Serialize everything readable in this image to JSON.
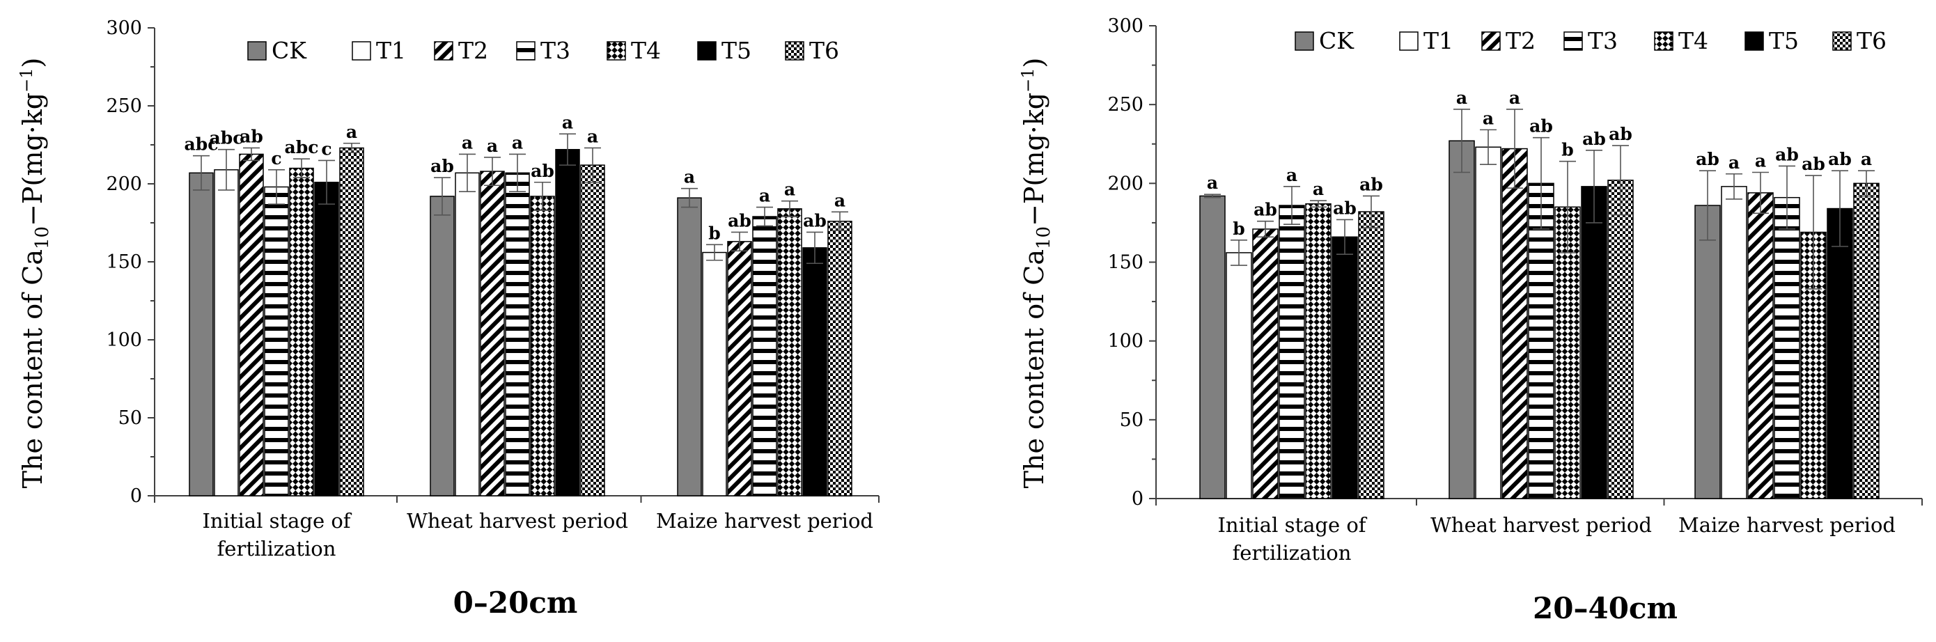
{
  "chart_data": [
    {
      "type": "bar",
      "title": "0–20cm",
      "ylabel": "The content of Ca10−P(mg·kg−1)",
      "ylabel_parts": {
        "prefix": "The content of Ca",
        "sub": "10",
        "mid": "−P(mg·kg",
        "sup": "−1",
        "suffix": ")"
      },
      "ylim": [
        0,
        300
      ],
      "yticks": [
        "0",
        "50",
        "100",
        "150",
        "200",
        "250",
        "300"
      ],
      "categories": [
        [
          "Initial stage of",
          "fertilization"
        ],
        [
          "Wheat harvest period"
        ],
        [
          "Maize harvest period"
        ]
      ],
      "legend": [
        "CK",
        "T1",
        "T2",
        "T3",
        "T4",
        "T5",
        "T6"
      ],
      "series": [
        {
          "name": "CK",
          "values": [
            207,
            192,
            191
          ],
          "errors": [
            11,
            12,
            6
          ],
          "sig": [
            "abc",
            "ab",
            "a"
          ]
        },
        {
          "name": "T1",
          "values": [
            209,
            207,
            156
          ],
          "errors": [
            13,
            12,
            5
          ],
          "sig": [
            "abc",
            "a",
            "b"
          ]
        },
        {
          "name": "T2",
          "values": [
            219,
            208,
            163
          ],
          "errors": [
            4,
            9,
            6
          ],
          "sig": [
            "ab",
            "a",
            "ab"
          ]
        },
        {
          "name": "T3",
          "values": [
            198,
            207,
            179
          ],
          "errors": [
            11,
            12,
            6
          ],
          "sig": [
            "c",
            "a",
            "a"
          ]
        },
        {
          "name": "T4",
          "values": [
            210,
            192,
            184
          ],
          "errors": [
            6,
            9,
            5
          ],
          "sig": [
            "abc",
            "ab",
            "a"
          ]
        },
        {
          "name": "T5",
          "values": [
            201,
            222,
            159
          ],
          "errors": [
            14,
            10,
            10
          ],
          "sig": [
            "c",
            "a",
            "ab"
          ]
        },
        {
          "name": "T6",
          "values": [
            223,
            212,
            176
          ],
          "errors": [
            3,
            11,
            6
          ],
          "sig": [
            "a",
            "a",
            "a"
          ]
        }
      ]
    },
    {
      "type": "bar",
      "title": "20–40cm",
      "ylabel": "The content of Ca10−P(mg·kg−1)",
      "ylabel_parts": {
        "prefix": "The content of Ca",
        "sub": "10",
        "mid": "−P(mg·kg",
        "sup": "−1",
        "suffix": ")"
      },
      "ylim": [
        0,
        300
      ],
      "yticks": [
        "0",
        "50",
        "100",
        "150",
        "200",
        "250",
        "300"
      ],
      "categories": [
        [
          "Initial stage of",
          "fertilization"
        ],
        [
          "Wheat harvest period"
        ],
        [
          "Maize harvest period"
        ]
      ],
      "legend": [
        "CK",
        "T1",
        "T2",
        "T3",
        "T4",
        "T5",
        "T6"
      ],
      "series": [
        {
          "name": "CK",
          "values": [
            192,
            227,
            186
          ],
          "errors": [
            1,
            20,
            22
          ],
          "sig": [
            "a",
            "a",
            "ab"
          ]
        },
        {
          "name": "T1",
          "values": [
            156,
            223,
            198
          ],
          "errors": [
            8,
            11,
            8
          ],
          "sig": [
            "b",
            "a",
            "a"
          ]
        },
        {
          "name": "T2",
          "values": [
            171,
            222,
            194
          ],
          "errors": [
            5,
            25,
            13
          ],
          "sig": [
            "ab",
            "a",
            "a"
          ]
        },
        {
          "name": "T3",
          "values": [
            186,
            200,
            191
          ],
          "errors": [
            12,
            29,
            20
          ],
          "sig": [
            "a",
            "ab",
            "ab"
          ]
        },
        {
          "name": "T4",
          "values": [
            187,
            185,
            169
          ],
          "errors": [
            2,
            29,
            36
          ],
          "sig": [
            "a",
            "b",
            "ab"
          ]
        },
        {
          "name": "T5",
          "values": [
            166,
            198,
            184
          ],
          "errors": [
            11,
            23,
            24
          ],
          "sig": [
            "ab",
            "ab",
            "ab"
          ]
        },
        {
          "name": "T6",
          "values": [
            182,
            202,
            200
          ],
          "errors": [
            10,
            22,
            8
          ],
          "sig": [
            "ab",
            "ab",
            "a"
          ]
        }
      ]
    }
  ],
  "colors": {
    "CK": "#808080",
    "T1": "#ffffff",
    "T5": "#000000",
    "axis": "#404040",
    "text": "#000000"
  }
}
